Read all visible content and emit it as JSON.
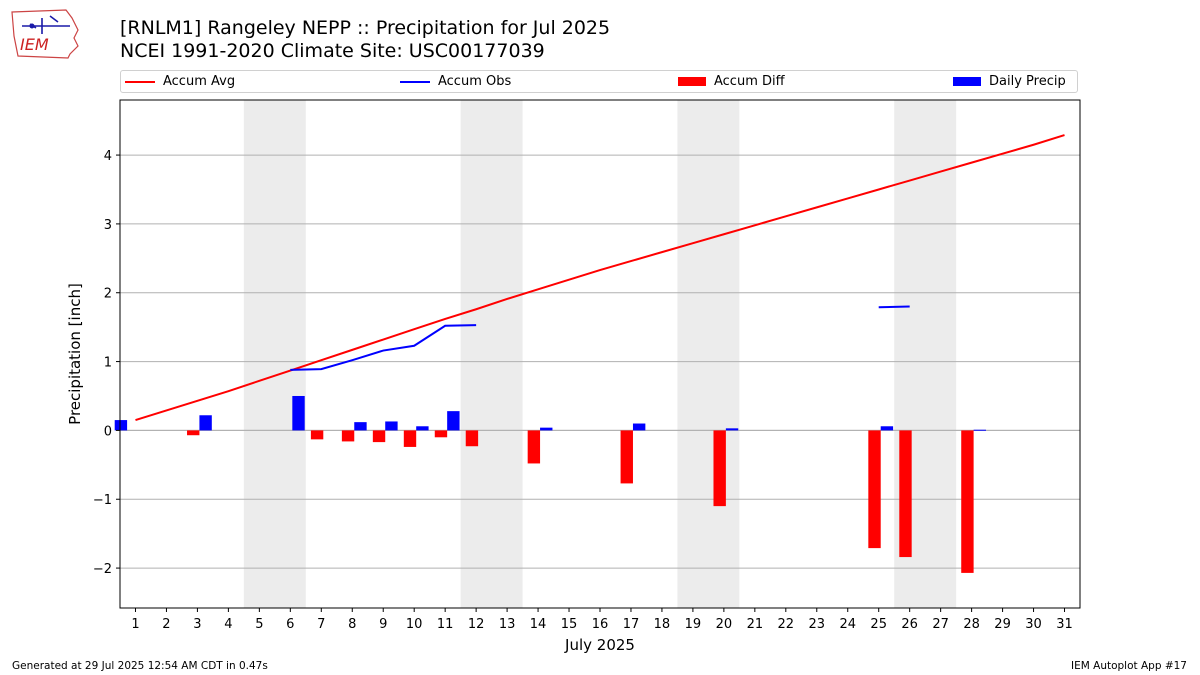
{
  "header": {
    "title_line1": "[RNLM1] Rangeley NEPP :: Precipitation for Jul 2025",
    "title_line2": "NCEI 1991-2020 Climate Site: USC00177039"
  },
  "logo": {
    "text": "IEM",
    "icon": "iowa-state-outline-logo-icon"
  },
  "legend": {
    "accum_avg": "Accum Avg",
    "accum_obs": "Accum Obs",
    "accum_diff": "Accum Diff",
    "daily_precip": "Daily Precip"
  },
  "footer": {
    "left": "Generated at 29 Jul 2025 12:54 AM CDT in 0.47s",
    "right": "IEM Autoplot App #17"
  },
  "colors": {
    "accum_avg": "#ff0000",
    "accum_obs": "#0000ff",
    "accum_diff": "#ff0000",
    "daily_precip": "#0000ff",
    "weekend_shade": "#ececec",
    "grid": "#b0b0b0"
  },
  "chart_data": {
    "type": "bar",
    "xlabel": "July 2025",
    "ylabel": "Precipitation [inch]",
    "xlim": [
      0.5,
      31.5
    ],
    "ylim": [
      -2.58,
      4.8
    ],
    "x_ticks": [
      1,
      2,
      3,
      4,
      5,
      6,
      7,
      8,
      9,
      10,
      11,
      12,
      13,
      14,
      15,
      16,
      17,
      18,
      19,
      20,
      21,
      22,
      23,
      24,
      25,
      26,
      27,
      28,
      29,
      30,
      31
    ],
    "y_ticks": [
      -2,
      -1,
      0,
      1,
      2,
      3,
      4
    ],
    "y_tick_labels": [
      "−2",
      "−1",
      "0",
      "1",
      "2",
      "3",
      "4"
    ],
    "grid": "horizontal",
    "legend_position": "top",
    "weekend_shading": [
      [
        4.5,
        6.5
      ],
      [
        11.5,
        13.5
      ],
      [
        18.5,
        20.5
      ],
      [
        25.5,
        27.5
      ]
    ],
    "accum_avg": {
      "name": "Accum Avg",
      "x": [
        1,
        2,
        3,
        4,
        5,
        6,
        7,
        8,
        9,
        10,
        11,
        12,
        13,
        14,
        15,
        16,
        17,
        18,
        19,
        20,
        21,
        22,
        23,
        24,
        25,
        26,
        27,
        28,
        29,
        30,
        31
      ],
      "values": [
        0.15,
        0.29,
        0.43,
        0.57,
        0.72,
        0.87,
        1.02,
        1.17,
        1.32,
        1.47,
        1.62,
        1.76,
        1.91,
        2.05,
        2.19,
        2.33,
        2.46,
        2.59,
        2.72,
        2.85,
        2.98,
        3.11,
        3.24,
        3.37,
        3.5,
        3.63,
        3.76,
        3.89,
        4.02,
        4.15,
        4.29
      ]
    },
    "accum_obs": [
      {
        "name": "Accum Obs",
        "x": [
          6,
          7,
          8,
          9,
          10,
          11,
          12
        ],
        "values": [
          0.88,
          0.89,
          1.02,
          1.16,
          1.23,
          1.52,
          1.53
        ]
      },
      {
        "name": "Accum Obs",
        "x": [
          25,
          26
        ],
        "values": [
          1.79,
          1.8
        ]
      }
    ],
    "accum_diff": {
      "name": "Accum Diff",
      "x": [
        3,
        7,
        8,
        9,
        10,
        11,
        12,
        14,
        17,
        20,
        25,
        26,
        28
      ],
      "values": [
        -0.07,
        -0.13,
        -0.16,
        -0.17,
        -0.24,
        -0.1,
        -0.23,
        -0.48,
        -0.77,
        -1.1,
        -1.71,
        -1.84,
        -2.07
      ]
    },
    "daily_precip": {
      "name": "Daily Precip",
      "x": [
        1,
        3,
        6,
        8,
        9,
        10,
        11,
        14,
        17,
        20,
        25,
        28
      ],
      "values": [
        0.15,
        0.22,
        0.5,
        0.12,
        0.13,
        0.06,
        0.28,
        0.04,
        0.1,
        0.03,
        0.06,
        0.01
      ]
    }
  }
}
